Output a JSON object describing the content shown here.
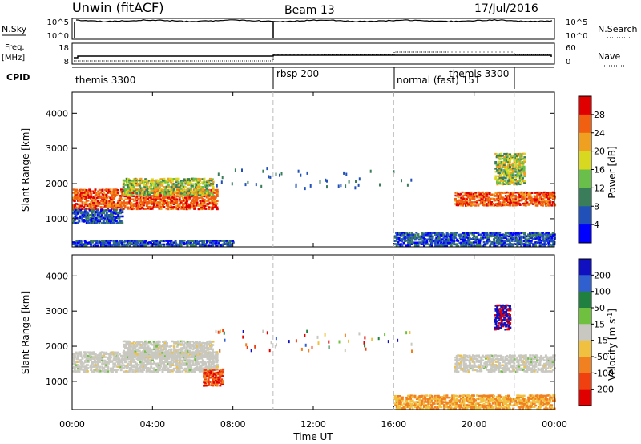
{
  "header": {
    "station": "Unwin (fitACF)",
    "beam": "Beam 13",
    "date": "17/Jul/2016"
  },
  "aux_panels": {
    "nsky_label": "N.Sky",
    "nsky_ticks": [
      "10^5",
      "10^0"
    ],
    "nsearch_label": "N.Search",
    "freq_label_1": "Freq.",
    "freq_label_2": "[MHz]",
    "freq_ticks": [
      "18",
      "8"
    ],
    "nave_label": "Nave",
    "nave_ticks": [
      "60",
      "0"
    ],
    "cpid_label": "CPID",
    "cpid_segments": [
      {
        "start": 0,
        "label": "themis 3300"
      },
      {
        "start": 10,
        "label": "rbsp 200"
      },
      {
        "start": 16,
        "label": "normal (fast) 151"
      },
      {
        "start": 22,
        "label": "themis 3300"
      }
    ]
  },
  "chart_data": [
    {
      "type": "heatmap",
      "name": "power",
      "ylabel": "Slant Range [km]",
      "yticks": [
        1000,
        2000,
        3000,
        4000
      ],
      "ylim": [
        200,
        4600
      ],
      "xlim": [
        0,
        24
      ],
      "colorbar": {
        "label": "Power [dB]",
        "ticks": [
          "4",
          "8",
          "12",
          "16",
          "20",
          "24",
          "28"
        ],
        "colors": [
          "#0000ff",
          "#2050b8",
          "#3a7d5a",
          "#6abf4a",
          "#d8d820",
          "#f0a020",
          "#f06010",
          "#e00000"
        ]
      },
      "bands": [
        {
          "t0": 0.0,
          "t1": 7.2,
          "r0": 1300,
          "r1": 1900,
          "level": "high"
        },
        {
          "t0": 2.5,
          "t1": 7.0,
          "r0": 1700,
          "r1": 2200,
          "level": "mid"
        },
        {
          "t0": 0.0,
          "t1": 2.5,
          "r0": 900,
          "r1": 1300,
          "level": "low"
        },
        {
          "t0": 0.0,
          "t1": 8.0,
          "r0": 250,
          "r1": 450,
          "level": "low"
        },
        {
          "t0": 16.0,
          "t1": 24.0,
          "r0": 250,
          "r1": 650,
          "level": "low"
        },
        {
          "t0": 19.0,
          "t1": 24.0,
          "r0": 1400,
          "r1": 1800,
          "level": "high"
        },
        {
          "t0": 21.0,
          "t1": 22.5,
          "r0": 2000,
          "r1": 2900,
          "level": "mid"
        }
      ]
    },
    {
      "type": "heatmap",
      "name": "velocity",
      "ylabel": "Slant Range [km]",
      "yticks": [
        1000,
        2000,
        3000,
        4000
      ],
      "ylim": [
        200,
        4600
      ],
      "xlim": [
        0,
        24
      ],
      "xticks": [
        "00:00",
        "04:00",
        "08:00",
        "12:00",
        "16:00",
        "20:00",
        "00:00"
      ],
      "xlabel": "Time UT",
      "colorbar": {
        "label": "Velocity [m s",
        "label_sup": "-1",
        "label_end": "]",
        "ticks": [
          "200",
          "100",
          "50",
          "15",
          "-15",
          "-50",
          "-100",
          "-200"
        ],
        "colors": [
          "#1010c0",
          "#3060d0",
          "#208040",
          "#70c040",
          "#c8c8c0",
          "#f0c040",
          "#f08020",
          "#f04010",
          "#e00000"
        ]
      },
      "bands": [
        {
          "t0": 0.0,
          "t1": 7.2,
          "r0": 1300,
          "r1": 1900,
          "level": "ground"
        },
        {
          "t0": 2.5,
          "t1": 7.0,
          "r0": 1700,
          "r1": 2200,
          "level": "ground"
        },
        {
          "t0": 6.5,
          "t1": 7.5,
          "r0": 900,
          "r1": 1400,
          "level": "neg"
        },
        {
          "t0": 16.0,
          "t1": 24.0,
          "r0": 250,
          "r1": 650,
          "level": "slight_neg"
        },
        {
          "t0": 19.0,
          "t1": 24.0,
          "r0": 1300,
          "r1": 1800,
          "level": "ground"
        },
        {
          "t0": 21.0,
          "t1": 21.8,
          "r0": 2500,
          "r1": 3200,
          "level": "pos"
        }
      ]
    }
  ]
}
